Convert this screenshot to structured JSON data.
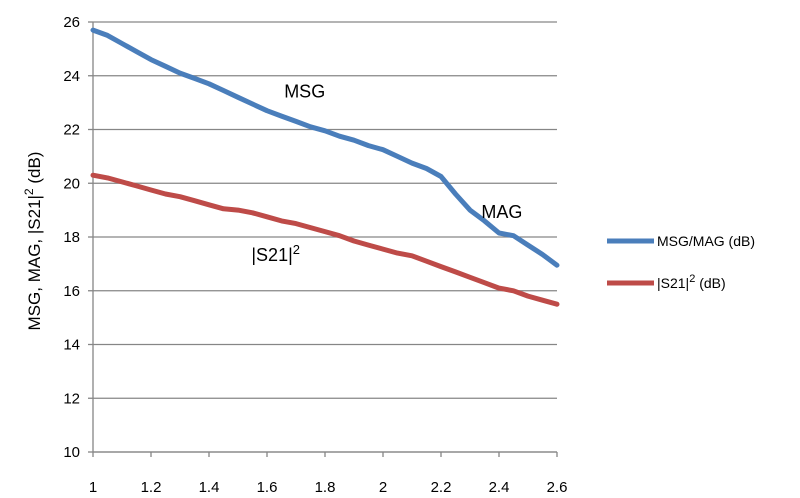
{
  "chart_data": {
    "type": "line",
    "title": "",
    "xlabel": "",
    "ylabel": {
      "main": "MSG, MAG, |S21|",
      "sup": "2",
      "suffix": " (dB)"
    },
    "xlim": [
      1,
      2.6
    ],
    "ylim": [
      10,
      26
    ],
    "x_ticks": [
      1,
      1.2,
      1.4,
      1.6,
      1.8,
      2,
      2.2,
      2.4,
      2.6
    ],
    "x_tick_labels": [
      "1",
      "1.2",
      "1.4",
      "1.6",
      "1.8",
      "2",
      "2.2",
      "2.4",
      "2.6"
    ],
    "y_ticks": [
      10,
      12,
      14,
      16,
      18,
      20,
      22,
      24,
      26
    ],
    "y_tick_labels": [
      "10",
      "12",
      "14",
      "16",
      "18",
      "20",
      "22",
      "24",
      "26"
    ],
    "grid": {
      "horizontal": true,
      "vertical": false
    },
    "legend_position": "right",
    "series": [
      {
        "name": "MSG/MAG (dB)",
        "color": "#4a7ebb",
        "x": [
          1.0,
          1.05,
          1.1,
          1.15,
          1.2,
          1.25,
          1.3,
          1.35,
          1.4,
          1.45,
          1.5,
          1.55,
          1.6,
          1.65,
          1.7,
          1.75,
          1.8,
          1.85,
          1.9,
          1.95,
          2.0,
          2.05,
          2.1,
          2.15,
          2.2,
          2.25,
          2.3,
          2.35,
          2.4,
          2.45,
          2.5,
          2.55,
          2.6
        ],
        "y": [
          25.7,
          25.5,
          25.2,
          24.9,
          24.6,
          24.35,
          24.1,
          23.9,
          23.7,
          23.45,
          23.2,
          22.95,
          22.7,
          22.5,
          22.3,
          22.1,
          21.95,
          21.75,
          21.6,
          21.4,
          21.25,
          21.0,
          20.75,
          20.55,
          20.25,
          19.6,
          19.0,
          18.6,
          18.15,
          18.05,
          17.7,
          17.35,
          16.95
        ]
      },
      {
        "name": "|S21|",
        "name_sup": "2",
        "name_suffix": "(dB)",
        "color": "#be4b48",
        "x": [
          1.0,
          1.05,
          1.1,
          1.15,
          1.2,
          1.25,
          1.3,
          1.35,
          1.4,
          1.45,
          1.5,
          1.55,
          1.6,
          1.65,
          1.7,
          1.75,
          1.8,
          1.85,
          1.9,
          1.95,
          2.0,
          2.05,
          2.1,
          2.15,
          2.2,
          2.25,
          2.3,
          2.35,
          2.4,
          2.45,
          2.5,
          2.55,
          2.6
        ],
        "y": [
          20.3,
          20.2,
          20.05,
          19.9,
          19.75,
          19.6,
          19.5,
          19.35,
          19.2,
          19.05,
          19.0,
          18.9,
          18.75,
          18.6,
          18.5,
          18.35,
          18.2,
          18.05,
          17.85,
          17.7,
          17.55,
          17.4,
          17.3,
          17.1,
          16.9,
          16.7,
          16.5,
          16.3,
          16.1,
          16.0,
          15.8,
          15.65,
          15.5
        ]
      }
    ],
    "annotations": [
      {
        "text": "MSG",
        "x": 1.73,
        "y": 23.2
      },
      {
        "text": "MAG",
        "x": 2.41,
        "y": 18.7
      },
      {
        "text": "|S21|",
        "sup": "2",
        "x": 1.63,
        "y": 17.1
      }
    ]
  }
}
